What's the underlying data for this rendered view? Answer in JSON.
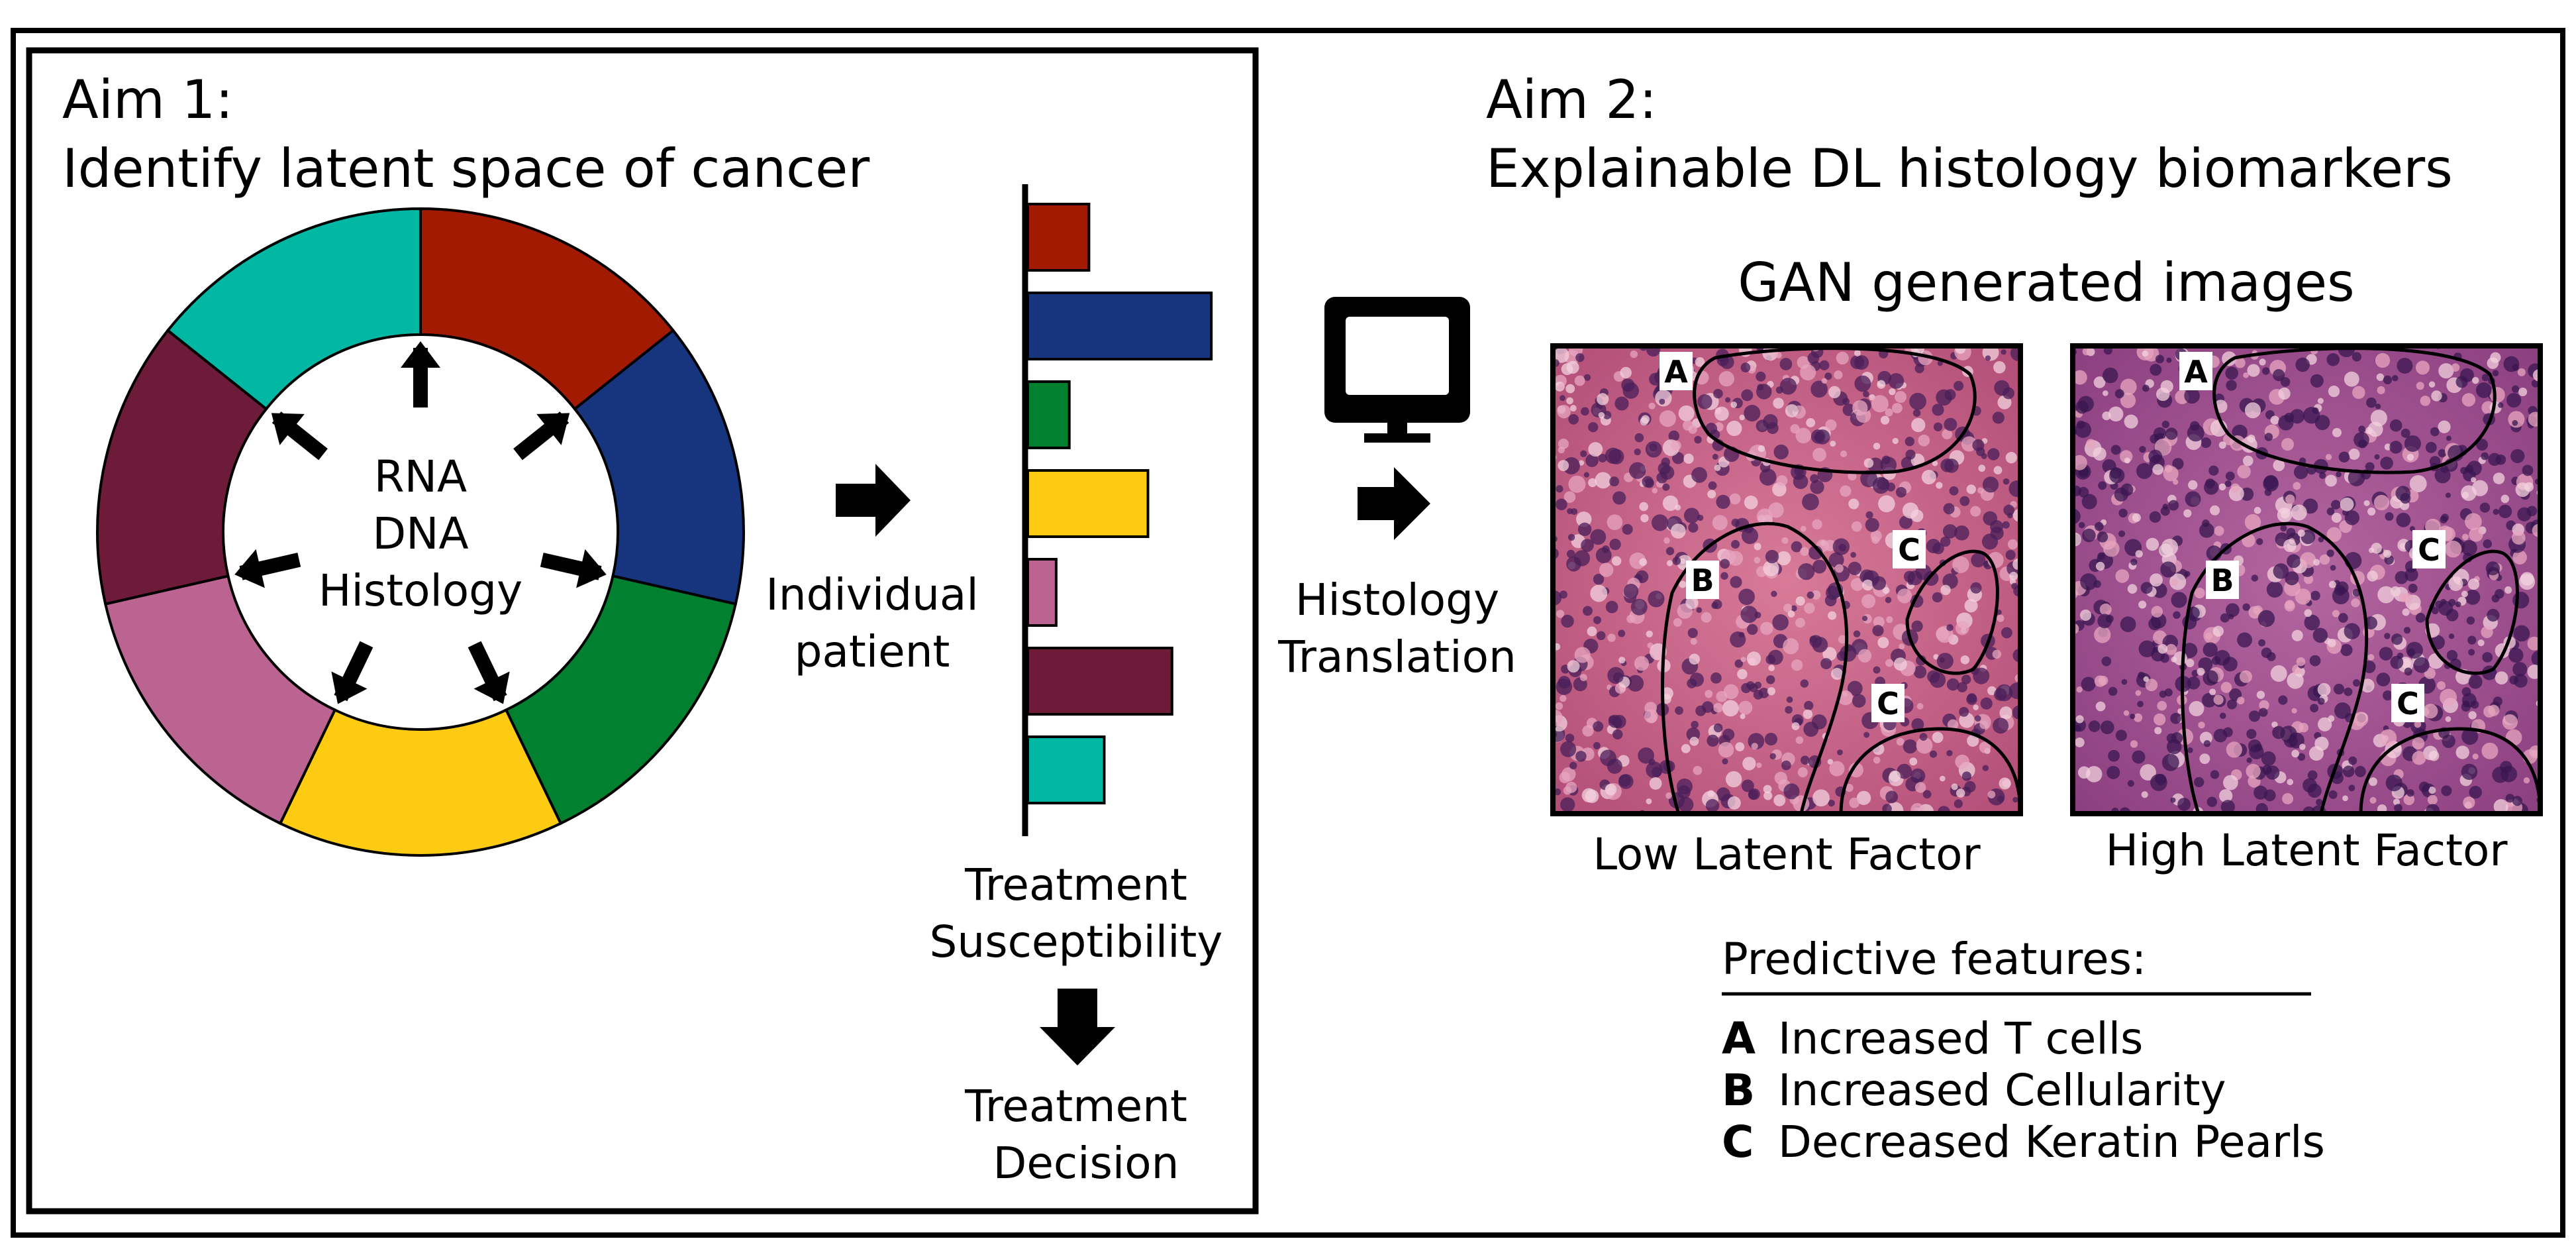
{
  "aim1": {
    "heading": "Aim 1:",
    "subheading": "Identify latent space of cancer",
    "ring_center": [
      "RNA",
      "DNA",
      "Histology"
    ],
    "segment_colors": [
      "#a31a03",
      "#17357f",
      "#01802f",
      "#fecb13",
      "#bb6391",
      "#6e1b3a",
      "#00b7a4"
    ],
    "arrow_label": [
      "Individual",
      "patient"
    ],
    "bar_values": [
      0.28,
      0.84,
      0.19,
      0.55,
      0.13,
      0.66,
      0.35
    ],
    "susceptibility_label": [
      "Treatment",
      "Susceptibility"
    ],
    "decision_label": [
      "Treatment",
      "Decision"
    ]
  },
  "translation": {
    "icon": "computer-monitor-icon",
    "label": [
      "Histology",
      "Translation"
    ]
  },
  "aim2": {
    "heading": "Aim 2:",
    "subheading": "Explainable DL histology biomarkers",
    "gan_title": "GAN generated images",
    "images": [
      {
        "caption": "Low Latent Factor",
        "tint": "#c55c80",
        "markers": [
          "A",
          "B",
          "C",
          "C"
        ]
      },
      {
        "caption": "High Latent Factor",
        "tint": "#a24e88",
        "markers": [
          "A",
          "B",
          "C",
          "C"
        ]
      }
    ],
    "features_title": "Predictive features:",
    "features": [
      {
        "key": "A",
        "text": "Increased T cells"
      },
      {
        "key": "B",
        "text": "Increased Cellularity"
      },
      {
        "key": "C",
        "text": "Decreased Keratin Pearls"
      }
    ]
  }
}
